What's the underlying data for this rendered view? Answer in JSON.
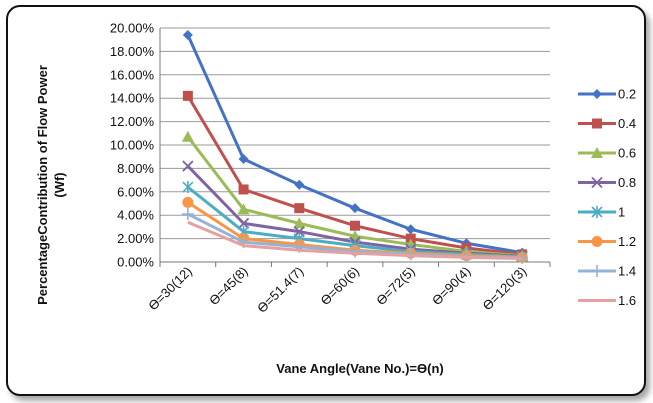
{
  "chart_data": {
    "type": "line",
    "title": "",
    "xlabel": "Vane Angle(Vane No.)=ϴ(n)",
    "ylabel_lines": [
      "PercentageContribution of Flow Power",
      "(Wf)"
    ],
    "categories": [
      "ϴ=30(12)",
      "ϴ=45(8)",
      "ϴ=51.4(7)",
      "ϴ=60(6)",
      "ϴ=72(5)",
      "ϴ=90(4)",
      "ϴ=120(3)"
    ],
    "ylim": [
      0,
      20
    ],
    "yticks": [
      0,
      2,
      4,
      6,
      8,
      10,
      12,
      14,
      16,
      18,
      20
    ],
    "ytick_labels": [
      "0.00%",
      "2.00%",
      "4.00%",
      "6.00%",
      "8.00%",
      "10.00%",
      "12.00%",
      "14.00%",
      "16.00%",
      "18.00%",
      "20.00%"
    ],
    "legend_position": "right",
    "series": [
      {
        "name": "0.2",
        "color": "#4472C4",
        "marker": "diamond",
        "values": [
          19.4,
          8.8,
          6.6,
          4.6,
          2.8,
          1.6,
          0.8
        ]
      },
      {
        "name": "0.4",
        "color": "#C0504D",
        "marker": "square",
        "values": [
          14.2,
          6.2,
          4.6,
          3.1,
          2.0,
          1.2,
          0.65
        ]
      },
      {
        "name": "0.6",
        "color": "#9BBB59",
        "marker": "triangle",
        "values": [
          10.7,
          4.5,
          3.3,
          2.2,
          1.5,
          0.9,
          0.55
        ]
      },
      {
        "name": "0.8",
        "color": "#8064A2",
        "marker": "x",
        "values": [
          8.2,
          3.3,
          2.6,
          1.7,
          1.1,
          0.75,
          0.5
        ]
      },
      {
        "name": "1",
        "color": "#4BACC6",
        "marker": "star",
        "values": [
          6.4,
          2.6,
          2.0,
          1.4,
          0.9,
          0.65,
          0.45
        ]
      },
      {
        "name": "1.2",
        "color": "#F79646",
        "marker": "circle",
        "values": [
          5.1,
          2.0,
          1.5,
          1.0,
          0.75,
          0.55,
          0.4
        ]
      },
      {
        "name": "1.4",
        "color": "#95B3D7",
        "marker": "plus",
        "values": [
          4.1,
          1.7,
          1.3,
          0.9,
          0.65,
          0.45,
          0.35
        ]
      },
      {
        "name": "1.6",
        "color": "#E6A0A0",
        "marker": "none",
        "values": [
          3.4,
          1.4,
          1.0,
          0.75,
          0.55,
          0.4,
          0.3
        ]
      }
    ]
  }
}
